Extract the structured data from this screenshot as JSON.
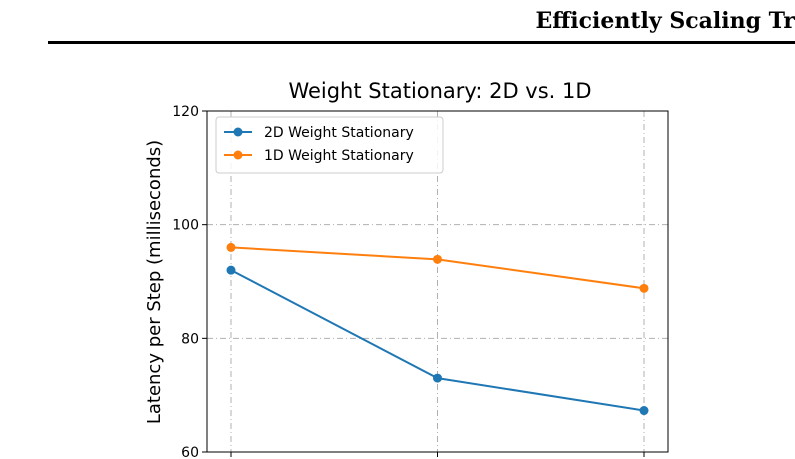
{
  "page": {
    "running_header": "Efficiently Scaling Tr"
  },
  "chart_data": {
    "type": "line",
    "title": "Weight Stationary: 2D vs. 1D",
    "xlabel": "",
    "ylabel": "Latency per Step (milliseconds)",
    "ylim": [
      60,
      120
    ],
    "yticks": [
      60,
      80,
      100,
      120
    ],
    "x": [
      0,
      1,
      2
    ],
    "grid": true,
    "legend_position": "upper-left",
    "series": [
      {
        "name": "2D Weight Stationary",
        "color": "#1f77b4",
        "values": [
          92.0,
          73.0,
          67.3
        ]
      },
      {
        "name": "1D Weight Stationary",
        "color": "#ff7f0e",
        "values": [
          96.0,
          93.9,
          88.8
        ]
      }
    ]
  }
}
